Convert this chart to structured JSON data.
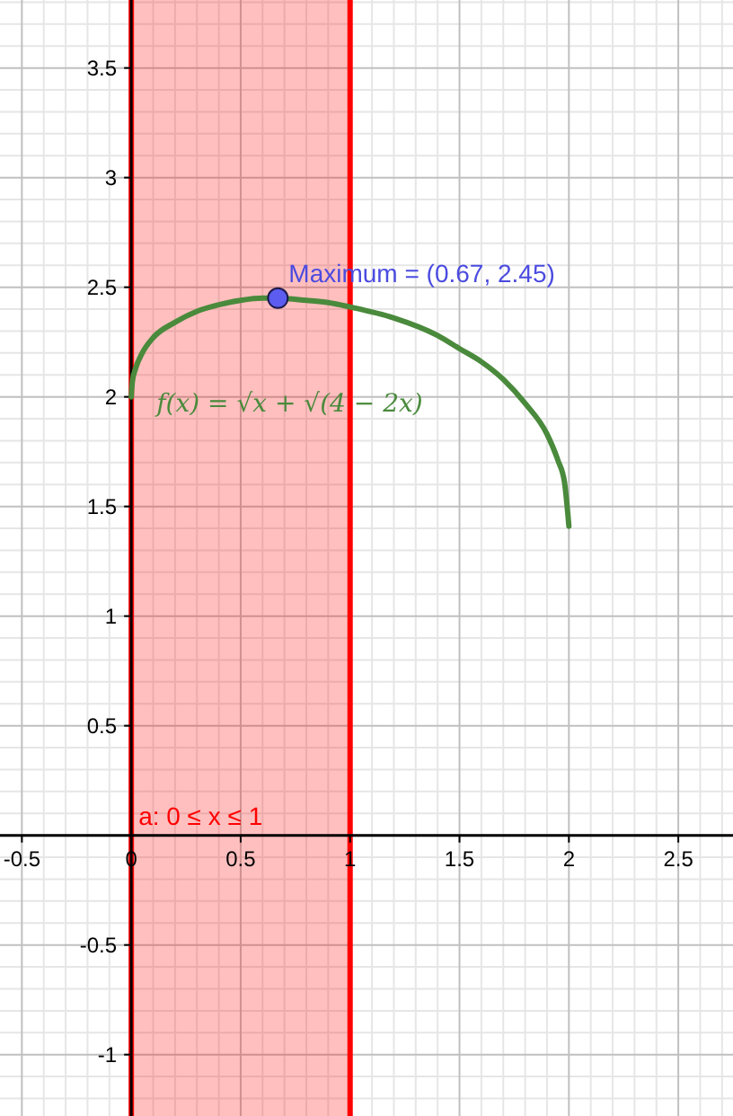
{
  "chart_data": {
    "type": "line",
    "xlim": [
      -0.6,
      2.75
    ],
    "ylim": [
      -1.28,
      3.81
    ],
    "xticks": [
      -0.5,
      0,
      0.5,
      1,
      1.5,
      2,
      2.5
    ],
    "yticks": [
      -1,
      -0.5,
      0.5,
      1,
      1.5,
      2,
      2.5,
      3,
      3.5
    ],
    "grid": true,
    "line_style": "solid",
    "series": [
      {
        "name": "f(x) = √x + √(4 − 2x)",
        "color": "#4a8a3c",
        "x": [
          0,
          0.005,
          0.02,
          0.05,
          0.1,
          0.2,
          0.3,
          0.4,
          0.5,
          0.6,
          0.67,
          0.8,
          0.9,
          1,
          1.2,
          1.4,
          1.5,
          1.6,
          1.7,
          1.8,
          1.9,
          1.95,
          1.98,
          2
        ],
        "values": [
          2,
          2.07,
          2.13,
          2.2,
          2.27,
          2.34,
          2.39,
          2.42,
          2.44,
          2.45,
          2.45,
          2.44,
          2.43,
          2.41,
          2.36,
          2.28,
          2.22,
          2.16,
          2.08,
          1.97,
          1.83,
          1.71,
          1.61,
          1.41
        ]
      },
      {
        "type": "scatter",
        "marker": "circle",
        "color": "#5c5cf0",
        "x": [
          0.67
        ],
        "values": [
          2.45
        ]
      }
    ],
    "annotations": [
      {
        "text": "Maximum = (0.67, 2.45)",
        "x": 0.67,
        "y": 2.45
      }
    ],
    "bands": [
      {
        "axis": "x",
        "from": 0,
        "to": 1,
        "label": "a: 0 ≤ x ≤ 1",
        "color": "#ff0000"
      }
    ]
  }
}
